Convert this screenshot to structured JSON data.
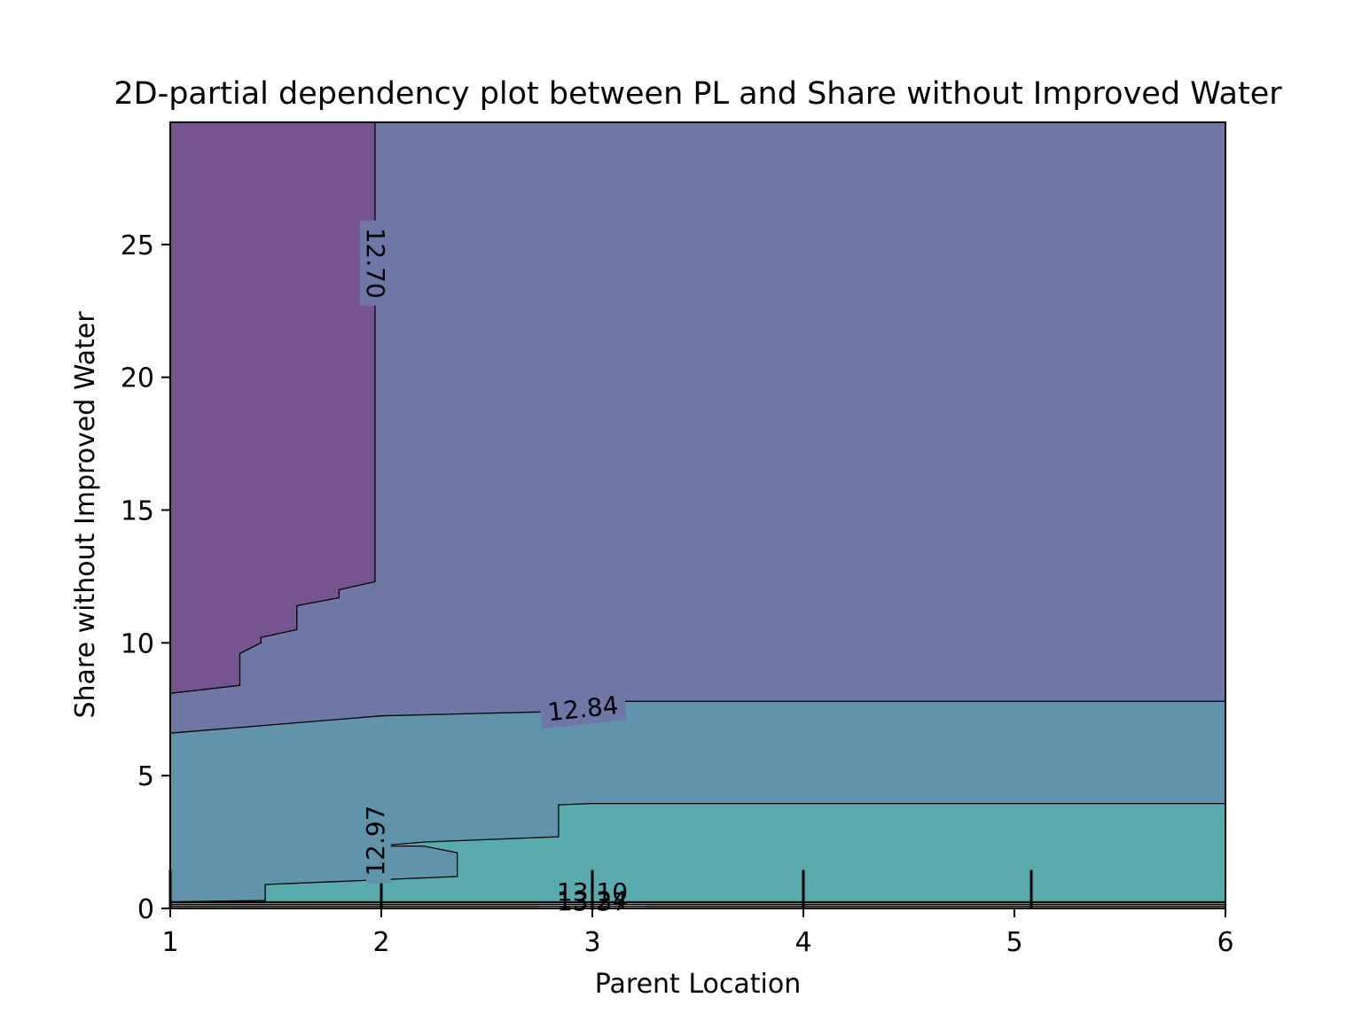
{
  "chart_data": {
    "type": "contour",
    "title": "2D-partial dependency plot between PL and Share without Improved Water",
    "xlabel": "Parent Location",
    "ylabel": "Share without Improved Water",
    "xlim": [
      1,
      6
    ],
    "ylim": [
      0,
      29.6
    ],
    "x_ticks": [
      1,
      2,
      3,
      4,
      5,
      6
    ],
    "y_ticks": [
      0,
      5,
      10,
      15,
      20,
      25
    ],
    "grid": false,
    "legend": "none",
    "contour_levels": [
      "12.70",
      "12.84",
      "12.97",
      "13.10",
      "13.24",
      "13.37"
    ],
    "colors": {
      "level_below_12_70": "#76548f",
      "level_12_70_12_84": "#6f77a6",
      "level_12_84_12_97": "#6193aa",
      "level_12_97_13_10": "#5aabad",
      "level_13_10_13_24": "#4cbe8c",
      "level_top": "#9ed36a",
      "contour_line": "#000000"
    },
    "regions": [
      {
        "level": "<12.70",
        "boundary": [
          [
            1,
            8.1
          ],
          [
            1.33,
            8.4
          ],
          [
            1.33,
            9.6
          ],
          [
            1.43,
            10.0
          ],
          [
            1.43,
            10.2
          ],
          [
            1.6,
            10.5
          ],
          [
            1.6,
            11.4
          ],
          [
            1.8,
            11.7
          ],
          [
            1.8,
            12.0
          ],
          [
            1.97,
            12.3
          ],
          [
            1.97,
            29.6
          ],
          [
            1,
            29.6
          ]
        ]
      },
      {
        "level": "12.84-12.97",
        "boundary": [
          [
            1,
            6.6
          ],
          [
            2,
            7.25
          ],
          [
            2.75,
            7.4
          ],
          [
            3,
            7.8
          ],
          [
            6,
            7.8
          ],
          [
            6,
            0
          ],
          [
            1,
            0
          ]
        ]
      },
      {
        "level": "12.97-13.10",
        "boundary": [
          [
            1.45,
            0.3
          ],
          [
            1.45,
            0.9
          ],
          [
            2.36,
            1.2
          ],
          [
            2.36,
            2.1
          ],
          [
            2.2,
            2.35
          ],
          [
            1.98,
            2.35
          ],
          [
            2.2,
            2.5
          ],
          [
            2.84,
            2.7
          ],
          [
            2.84,
            3.9
          ],
          [
            3,
            3.95
          ],
          [
            6,
            3.95
          ],
          [
            6,
            0.25
          ],
          [
            1,
            0.25
          ]
        ]
      }
    ],
    "rug_x": [
      1,
      2,
      3,
      4,
      5.08,
      6
    ],
    "rug_height": 1.45
  }
}
